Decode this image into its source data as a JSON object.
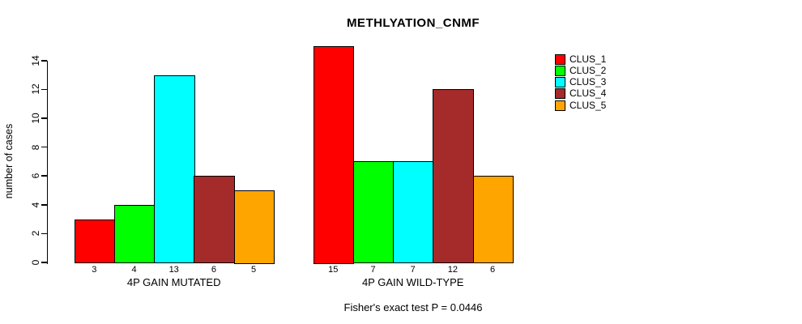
{
  "title": "METHLYATION_CNMF",
  "y_axis": {
    "label": "number of cases",
    "ticks": [
      0,
      2,
      4,
      6,
      8,
      10,
      12,
      14
    ]
  },
  "footer": "Fisher's exact test P = 0.0446",
  "legend": {
    "items": [
      {
        "label": "CLUS_1",
        "color": "#FF0000"
      },
      {
        "label": "CLUS_2",
        "color": "#00FF00"
      },
      {
        "label": "CLUS_3",
        "color": "#00FFFF"
      },
      {
        "label": "CLUS_4",
        "color": "#A52A2A"
      },
      {
        "label": "CLUS_5",
        "color": "#FFA500"
      }
    ]
  },
  "chart_data": {
    "type": "bar",
    "title": "METHLYATION_CNMF",
    "xlabel": "",
    "ylabel": "number of cases",
    "ylim": [
      0,
      15
    ],
    "yticks": [
      0,
      2,
      4,
      6,
      8,
      10,
      12,
      14
    ],
    "grid": false,
    "legend_position": "top-right-outside",
    "series_names": [
      "CLUS_1",
      "CLUS_2",
      "CLUS_3",
      "CLUS_4",
      "CLUS_5"
    ],
    "colors": [
      "#FF0000",
      "#00FF00",
      "#00FFFF",
      "#A52A2A",
      "#FFA500"
    ],
    "groups": [
      {
        "label": "4P GAIN MUTATED",
        "values": [
          3,
          4,
          13,
          6,
          5
        ]
      },
      {
        "label": "4P GAIN WILD-TYPE",
        "values": [
          15,
          7,
          7,
          12,
          6
        ]
      }
    ],
    "bar_value_labels_shown": true,
    "annotation": "Fisher's exact test P = 0.0446"
  }
}
